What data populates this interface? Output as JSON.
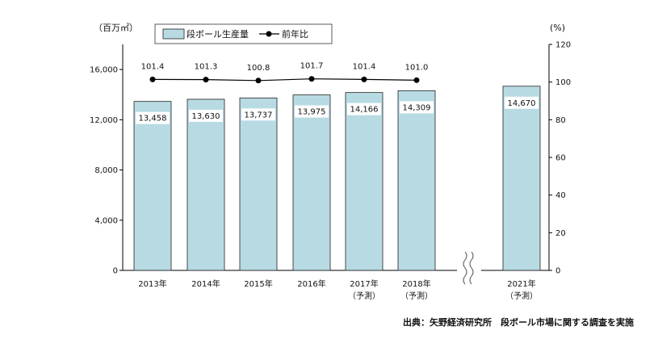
{
  "chart_data": {
    "type": "bar",
    "left_unit": "（百万㎡）",
    "right_unit": "(%)",
    "categories": [
      "2013年",
      "2014年",
      "2015年",
      "2016年",
      "2017年",
      "2018年",
      "2021年"
    ],
    "category_notes": [
      "",
      "",
      "",
      "",
      "（予測）",
      "（予測）",
      "（予測）"
    ],
    "series": [
      {
        "name": "段ボール生産量",
        "type": "bar",
        "axis": "left",
        "values": [
          13458,
          13630,
          13737,
          13975,
          14166,
          14309,
          14670
        ],
        "value_labels": [
          "13,458",
          "13,630",
          "13,737",
          "13,975",
          "14,166",
          "14,309",
          "14,670"
        ]
      },
      {
        "name": "前年比",
        "type": "line",
        "axis": "right",
        "values": [
          101.4,
          101.3,
          100.8,
          101.7,
          101.4,
          101.0,
          null
        ],
        "value_labels": [
          "101.4",
          "101.3",
          "100.8",
          "101.7",
          "101.4",
          "101.0",
          ""
        ]
      }
    ],
    "ylim_left": [
      0,
      18000
    ],
    "yticks_left": [
      "0",
      "4,000",
      "8,000",
      "12,000",
      "16,000"
    ],
    "ylim_right": [
      0,
      120
    ],
    "yticks_right": [
      "0",
      "20",
      "40",
      "60",
      "80",
      "100",
      "120"
    ],
    "axis_break": "between 2018年 and 2021年",
    "legend_position": "top",
    "grid": false,
    "colors": {
      "bar_fill": "#b8dbe3",
      "bar_stroke": "#222222",
      "line": "#000000"
    },
    "source": "出典：矢野経済研究所　段ボール市場に関する調査を実施"
  }
}
